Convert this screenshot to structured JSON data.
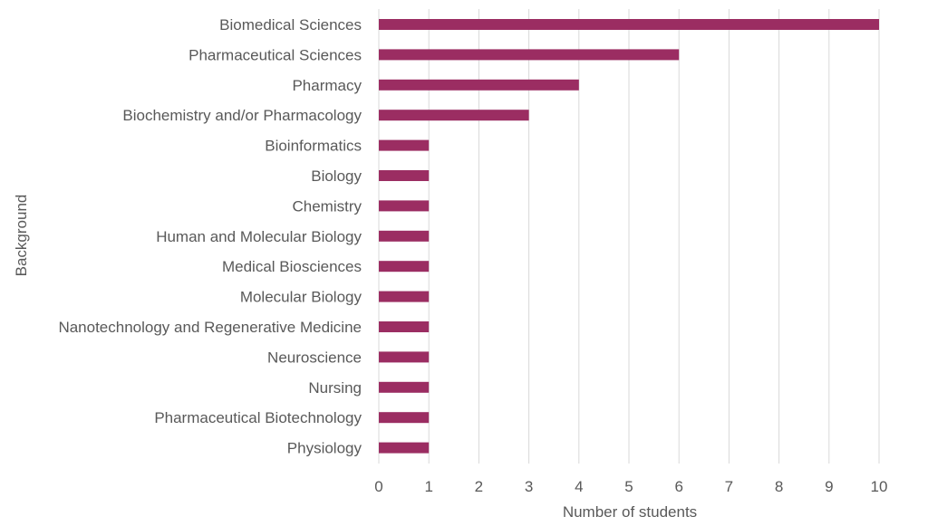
{
  "chart_data": {
    "type": "bar",
    "orientation": "horizontal",
    "categories": [
      "Biomedical Sciences",
      "Pharmaceutical Sciences",
      "Pharmacy",
      "Biochemistry and/or Pharmacology",
      "Bioinformatics",
      "Biology",
      "Chemistry",
      "Human and Molecular Biology",
      "Medical Biosciences",
      "Molecular Biology",
      "Nanotechnology and Regenerative Medicine",
      "Neuroscience",
      "Nursing",
      "Pharmaceutical Biotechnology",
      "Physiology"
    ],
    "values": [
      10,
      6,
      4,
      3,
      1,
      1,
      1,
      1,
      1,
      1,
      1,
      1,
      1,
      1,
      1
    ],
    "xlabel": "Number of students",
    "ylabel": "Background",
    "xlim": [
      0,
      10
    ],
    "xticks": [
      "0",
      "1",
      "2",
      "3",
      "4",
      "5",
      "6",
      "7",
      "8",
      "9",
      "10"
    ],
    "grid": "vertical",
    "legend": "none",
    "bar_color": "#9b2d62"
  }
}
